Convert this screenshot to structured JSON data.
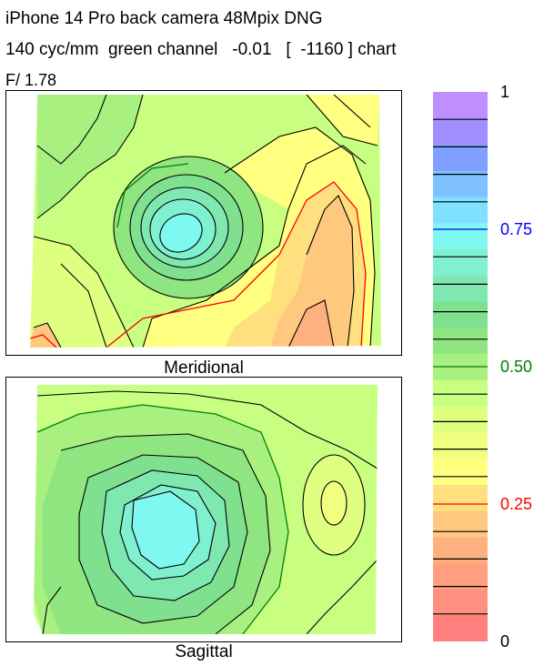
{
  "title": {
    "line1": "iPhone 14 Pro back camera 48Mpix DNG",
    "line2": "140 cyc/mm  green channel   -0.01   [  -1160 ] chart",
    "line3": "F/ 1.78"
  },
  "panels": {
    "top_label": "Meridional",
    "bottom_label": "Sagittal"
  },
  "colorbar": {
    "levels": 20,
    "ticks": [
      {
        "value": 1,
        "label": "1",
        "color": "#000000"
      },
      {
        "value": 0.75,
        "label": "0.75",
        "color": "#0000ff"
      },
      {
        "value": 0.5,
        "label": "0.50",
        "color": "#008000"
      },
      {
        "value": 0.25,
        "label": "0.25",
        "color": "#ff0000"
      },
      {
        "value": 0,
        "label": "0",
        "color": "#000000"
      }
    ],
    "band_colors": [
      "#ff7f7f",
      "#ff8f7f",
      "#ff9f7f",
      "#ffb07f",
      "#ffc87f",
      "#ffe07f",
      "#ffff80",
      "#f0ff80",
      "#dfff80",
      "#c8ff80",
      "#a8f080",
      "#8fe680",
      "#7fe08f",
      "#7fe8b0",
      "#7ff0d0",
      "#7ff8f0",
      "#7fe0ff",
      "#7fc0ff",
      "#7fa0ff",
      "#9f8fff",
      "#c08fff"
    ]
  },
  "chart_data": [
    {
      "type": "heatmap",
      "title": "Meridional",
      "value_range": [
        0,
        1
      ],
      "contour_step": 0.05,
      "highlight_contours": {
        "0.25": "#ff0000",
        "0.50": "#008000",
        "0.75": "#0000ff"
      },
      "peak_value": 0.78,
      "min_value": 0.15
    },
    {
      "type": "heatmap",
      "title": "Sagittal",
      "value_range": [
        0,
        1
      ],
      "contour_step": 0.05,
      "highlight_contours": {
        "0.25": "#ff0000",
        "0.50": "#008000",
        "0.75": "#0000ff"
      },
      "peak_value": 0.72,
      "min_value": 0.4
    }
  ]
}
